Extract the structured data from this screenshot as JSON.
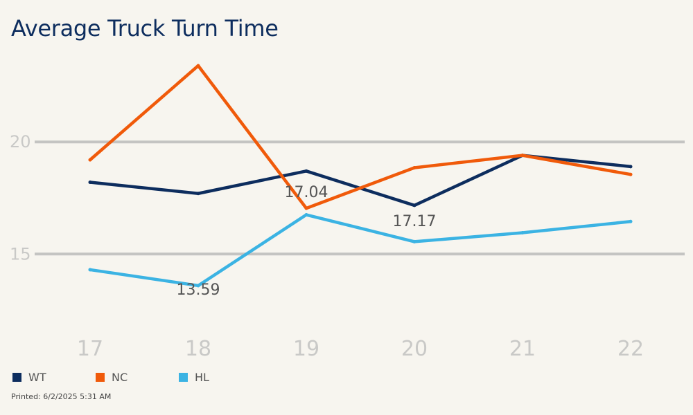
{
  "chart_data": {
    "type": "line",
    "title": "Average Truck Turn Time",
    "categories": [
      "17",
      "18",
      "19",
      "20",
      "21",
      "22"
    ],
    "ylim": [
      12.2,
      23.4
    ],
    "yticks": [
      15,
      20
    ],
    "grid": true,
    "legend_position": "bottom-left",
    "series": [
      {
        "name": "WT",
        "color": "#0d2d5e",
        "values": [
          18.2,
          17.7,
          18.7,
          17.17,
          19.4,
          18.9
        ]
      },
      {
        "name": "NC",
        "color": "#f05a0a",
        "values": [
          19.2,
          23.4,
          17.04,
          18.85,
          19.4,
          18.55
        ]
      },
      {
        "name": "HL",
        "color": "#3bb3e3",
        "values": [
          14.3,
          13.59,
          16.75,
          15.55,
          15.95,
          16.45
        ]
      }
    ],
    "data_labels": [
      {
        "series": "HL",
        "category": "18",
        "text": "13.59"
      },
      {
        "series": "NC",
        "category": "19",
        "text": "17.04"
      },
      {
        "series": "WT",
        "category": "20",
        "text": "17.17"
      }
    ]
  },
  "footer": {
    "printed": "Printed: 6/2/2025 5:31 AM"
  }
}
